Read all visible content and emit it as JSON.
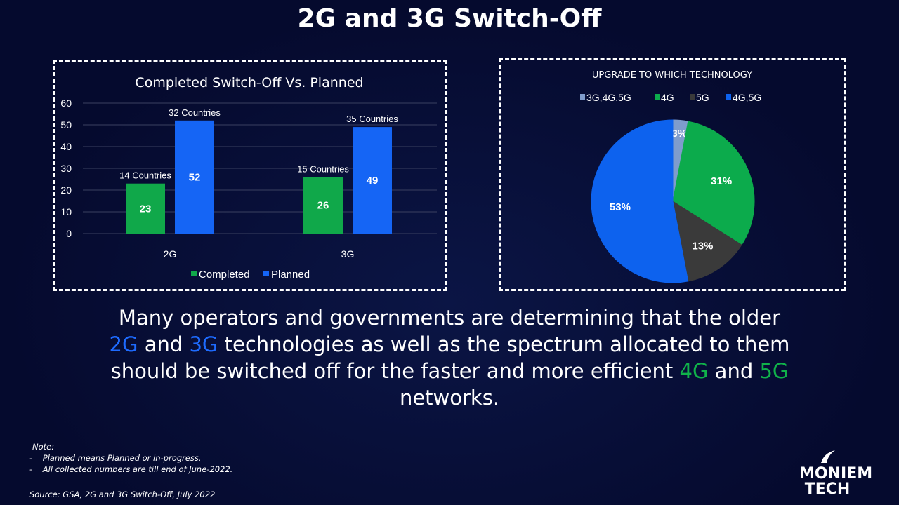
{
  "title": "2G and 3G Switch-Off",
  "main_text": {
    "l1": "Many operators and governments are determining that the older",
    "l2a": "2G",
    "l2b": " and ",
    "l2c": "3G",
    "l2d": " technologies as well as the spectrum allocated to them",
    "l3a": "should be switched off for the faster and more efficient ",
    "l3b": "4G",
    "l3c": " and ",
    "l3d": "5G",
    "l4": "networks."
  },
  "notes": {
    "heading": "Note:",
    "items": [
      "Planned means Planned or in-progress.",
      "All collected numbers are till end of June-2022."
    ],
    "source": "Source: GSA, 2G and 3G Switch-Off, July 2022"
  },
  "logo": {
    "line1": "MONIEM",
    "line2": "TECH"
  },
  "chart_data": [
    {
      "type": "bar",
      "title": "Completed Switch-Off Vs. Planned",
      "categories": [
        "2G",
        "3G"
      ],
      "ylim": [
        0,
        60
      ],
      "yticks": [
        "0",
        "10",
        "20",
        "30",
        "40",
        "50",
        "60"
      ],
      "series": [
        {
          "name": "Completed",
          "color": "#10a84a",
          "values": [
            23,
            26
          ],
          "annotations": [
            "14 Countries",
            "15 Countries"
          ]
        },
        {
          "name": "Planned",
          "color": "#1565f5",
          "values": [
            52,
            49
          ],
          "annotations": [
            "32 Countries",
            "35 Countries"
          ]
        }
      ],
      "legend": "bottom",
      "grid": true
    },
    {
      "type": "pie",
      "title": "UPGRADE TO WHICH TECHNOLOGY",
      "labels": [
        "3G,4G,5G",
        "4G",
        "5G",
        "4G,5G"
      ],
      "values": [
        3,
        31,
        13,
        53
      ],
      "value_labels": [
        "3%",
        "31%",
        "13%",
        "53%"
      ],
      "colors": [
        "#7f9ccc",
        "#0cab4c",
        "#3a3a3a",
        "#0d62ee"
      ],
      "legend": "top"
    }
  ]
}
